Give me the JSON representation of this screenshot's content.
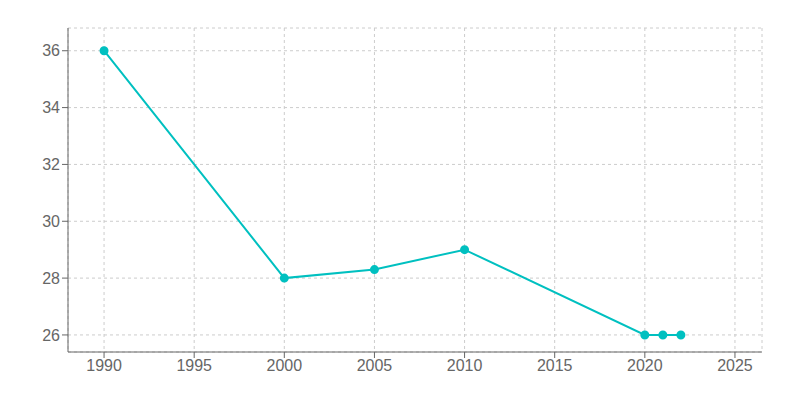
{
  "chart_data": {
    "type": "line",
    "x": [
      1990,
      2000,
      2005,
      2010,
      2020,
      2021,
      2022
    ],
    "values": [
      36,
      28,
      28.3,
      29,
      26,
      26,
      26
    ],
    "color": "#00C0C0",
    "marker": "circle",
    "xlim": [
      1988,
      2026.5
    ],
    "ylim": [
      25.4,
      36.8
    ],
    "xticks": [
      1990,
      1995,
      2000,
      2005,
      2010,
      2015,
      2020,
      2025
    ],
    "yticks": [
      26,
      28,
      30,
      32,
      34,
      36
    ],
    "grid": true
  }
}
